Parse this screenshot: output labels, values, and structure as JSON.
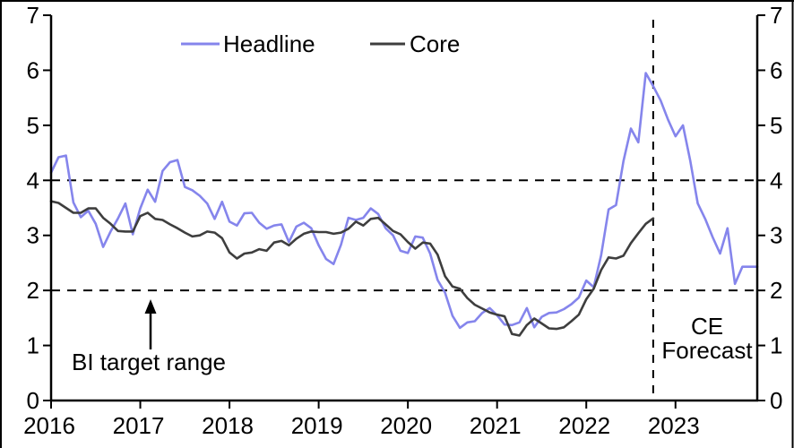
{
  "chart": {
    "legend": [
      {
        "label": "Headline",
        "color": "#8585ec"
      },
      {
        "label": "Core",
        "color": "#3e3e3e"
      }
    ],
    "annotations": {
      "target_range_label": "BI target range",
      "forecast_line1": "CE",
      "forecast_line2": "Forecast"
    },
    "colors": {
      "headline": "#8585ec",
      "core": "#3e3e3e",
      "axis": "#000000",
      "dashed": "#000000"
    }
  },
  "chart_data": {
    "type": "line",
    "title": "",
    "xlabel": "",
    "ylabel": "",
    "x_unit": "month",
    "x_start": "2016-01",
    "x_end": "2023-12",
    "x_tick_labels": [
      "2016",
      "2017",
      "2018",
      "2019",
      "2020",
      "2021",
      "2022",
      "2023"
    ],
    "y_ticks": [
      0,
      1,
      2,
      3,
      4,
      5,
      6,
      7
    ],
    "ylim": [
      0,
      7
    ],
    "y_axis_sides": "both",
    "grid": false,
    "legend_position": "top",
    "target_range": [
      2,
      4
    ],
    "forecast_start": "2022-10",
    "series": [
      {
        "name": "Headline",
        "color": "#8585ec",
        "values": [
          4.14,
          4.42,
          4.45,
          3.6,
          3.33,
          3.45,
          3.21,
          2.79,
          3.07,
          3.31,
          3.58,
          3.02,
          3.49,
          3.83,
          3.61,
          4.17,
          4.33,
          4.37,
          3.88,
          3.82,
          3.72,
          3.58,
          3.3,
          3.61,
          3.25,
          3.18,
          3.4,
          3.41,
          3.23,
          3.12,
          3.18,
          3.2,
          2.88,
          3.16,
          3.23,
          3.13,
          2.82,
          2.57,
          2.48,
          2.83,
          3.32,
          3.28,
          3.32,
          3.49,
          3.39,
          3.13,
          3.0,
          2.72,
          2.68,
          2.98,
          2.96,
          2.67,
          2.19,
          1.96,
          1.54,
          1.32,
          1.42,
          1.44,
          1.59,
          1.68,
          1.55,
          1.38,
          1.37,
          1.42,
          1.68,
          1.33,
          1.52,
          1.59,
          1.6,
          1.66,
          1.75,
          1.87,
          2.18,
          2.06,
          2.64,
          3.47,
          3.55,
          4.35,
          4.94,
          4.69,
          5.95,
          5.71,
          5.45,
          5.1,
          4.8,
          5.0,
          4.35,
          3.58,
          3.3,
          2.97,
          2.67,
          3.13,
          2.12,
          2.43,
          2.43,
          2.43
        ]
      },
      {
        "name": "Core",
        "color": "#3e3e3e",
        "values": [
          3.62,
          3.59,
          3.5,
          3.41,
          3.41,
          3.49,
          3.49,
          3.32,
          3.21,
          3.08,
          3.07,
          3.07,
          3.35,
          3.41,
          3.3,
          3.28,
          3.2,
          3.13,
          3.05,
          2.98,
          3.0,
          3.07,
          3.05,
          2.95,
          2.69,
          2.58,
          2.67,
          2.69,
          2.75,
          2.72,
          2.87,
          2.9,
          2.82,
          2.94,
          3.03,
          3.07,
          3.06,
          3.06,
          3.03,
          3.05,
          3.12,
          3.25,
          3.18,
          3.3,
          3.32,
          3.2,
          3.08,
          3.02,
          2.88,
          2.76,
          2.87,
          2.85,
          2.65,
          2.26,
          2.07,
          2.03,
          1.86,
          1.74,
          1.67,
          1.6,
          1.56,
          1.53,
          1.21,
          1.18,
          1.37,
          1.49,
          1.4,
          1.31,
          1.3,
          1.33,
          1.44,
          1.56,
          1.84,
          2.03,
          2.37,
          2.6,
          2.58,
          2.63,
          2.86,
          3.04,
          3.21,
          3.31,
          null,
          null,
          null,
          null,
          null,
          null,
          null,
          null,
          null,
          null,
          null,
          null,
          null,
          null
        ]
      }
    ]
  }
}
